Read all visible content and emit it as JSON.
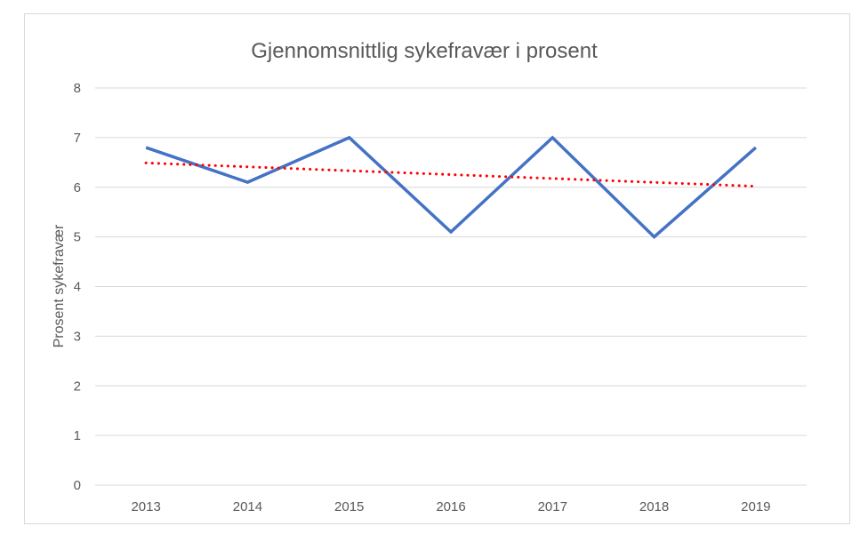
{
  "chart_data": {
    "type": "line",
    "title": "Gjennomsnittlig sykefravær i prosent",
    "xlabel": "",
    "ylabel": "Prosent sykefravær",
    "categories": [
      "2013",
      "2014",
      "2015",
      "2016",
      "2017",
      "2018",
      "2019"
    ],
    "ylim": [
      0,
      8
    ],
    "yticks": [
      0,
      1,
      2,
      3,
      4,
      5,
      6,
      7,
      8
    ],
    "grid": true,
    "legend": "none",
    "series": [
      {
        "values": [
          6.8,
          6.1,
          7.0,
          5.1,
          7.0,
          5.0,
          6.8
        ],
        "color": "#4472c4",
        "style": "solid"
      }
    ],
    "trendline": {
      "type": "linear",
      "values": [
        6.49,
        6.41,
        6.33,
        6.26,
        6.18,
        6.1,
        6.02
      ],
      "color": "#ff0000",
      "style": "dotted"
    }
  }
}
